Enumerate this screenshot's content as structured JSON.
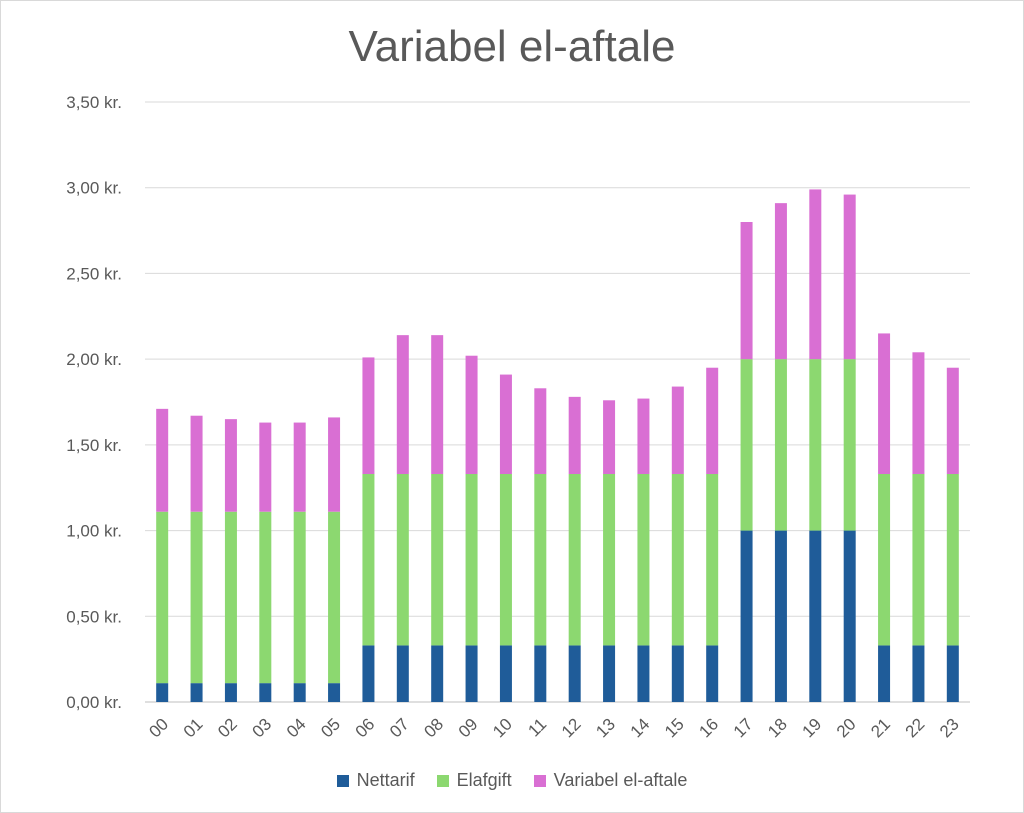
{
  "chart_data": {
    "type": "bar",
    "stacked": true,
    "title": "Variabel el-aftale",
    "xlabel": "",
    "ylabel": "",
    "ylim": [
      0,
      3.5
    ],
    "yticks": [
      "0,00 kr.",
      "0,50 kr.",
      "1,00 kr.",
      "1,50 kr.",
      "2,00 kr.",
      "2,50 kr.",
      "3,00 kr.",
      "3,50 kr."
    ],
    "grid": true,
    "legend_position": "bottom",
    "categories": [
      "00",
      "01",
      "02",
      "03",
      "04",
      "05",
      "06",
      "07",
      "08",
      "09",
      "10",
      "11",
      "12",
      "13",
      "14",
      "15",
      "16",
      "17",
      "18",
      "19",
      "20",
      "21",
      "22",
      "23"
    ],
    "series": [
      {
        "name": "Nettarif",
        "color": "#1f5c99",
        "values": [
          0.11,
          0.11,
          0.11,
          0.11,
          0.11,
          0.11,
          0.33,
          0.33,
          0.33,
          0.33,
          0.33,
          0.33,
          0.33,
          0.33,
          0.33,
          0.33,
          0.33,
          1.0,
          1.0,
          1.0,
          1.0,
          0.33,
          0.33,
          0.33
        ]
      },
      {
        "name": "Elafgift",
        "color": "#8cd870",
        "values": [
          1.0,
          1.0,
          1.0,
          1.0,
          1.0,
          1.0,
          1.0,
          1.0,
          1.0,
          1.0,
          1.0,
          1.0,
          1.0,
          1.0,
          1.0,
          1.0,
          1.0,
          1.0,
          1.0,
          1.0,
          1.0,
          1.0,
          1.0,
          1.0
        ]
      },
      {
        "name": "Variabel el-aftale",
        "color": "#d96fd3",
        "values": [
          0.6,
          0.56,
          0.54,
          0.52,
          0.52,
          0.55,
          0.68,
          0.81,
          0.81,
          0.69,
          0.58,
          0.5,
          0.45,
          0.43,
          0.44,
          0.51,
          0.62,
          0.8,
          0.91,
          0.99,
          0.96,
          0.82,
          0.71,
          0.62
        ]
      }
    ]
  }
}
